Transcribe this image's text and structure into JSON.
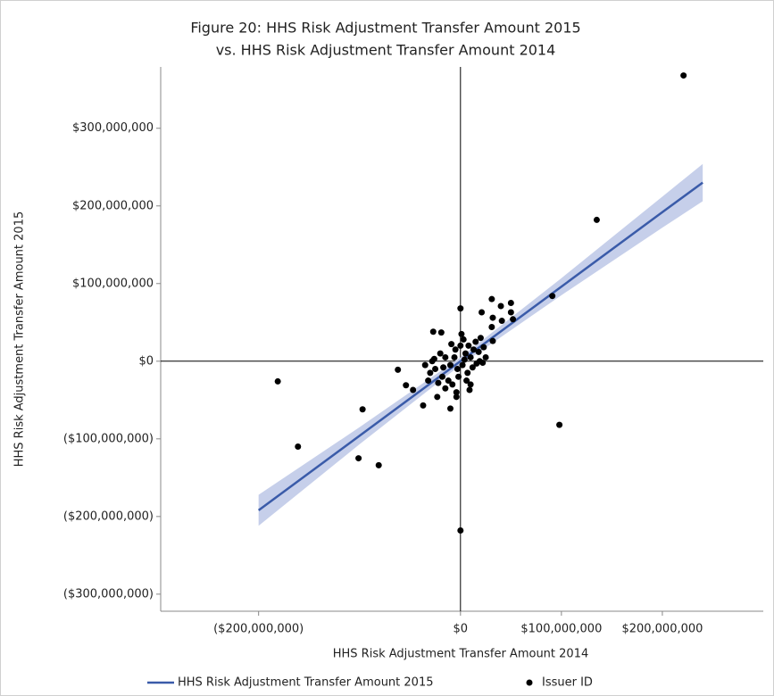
{
  "chart_data": {
    "type": "scatter",
    "title": [
      "Figure 20: HHS Risk Adjustment Transfer Amount 2015",
      "vs. HHS Risk Adjustment Transfer Amount 2014"
    ],
    "x_label": "HHS Risk Adjustment Transfer Amount 2014",
    "y_label": "HHS Risk Adjustment Transfer Amount 2015",
    "xlim": [
      -297000000,
      300000000
    ],
    "ylim": [
      -322000000,
      379000000
    ],
    "xticks": [
      {
        "value": -200000000,
        "label": "($200,000,000)"
      },
      {
        "value": 0,
        "label": "$0"
      },
      {
        "value": 100000000,
        "label": "$100,000,000"
      },
      {
        "value": 200000000,
        "label": "$200,000,000"
      }
    ],
    "yticks": [
      {
        "value": -300000000,
        "label": "($300,000,000)"
      },
      {
        "value": -200000000,
        "label": "($200,000,000)"
      },
      {
        "value": -100000000,
        "label": "($100,000,000)"
      },
      {
        "value": 0,
        "label": "$0"
      },
      {
        "value": 100000000,
        "label": "$100,000,000"
      },
      {
        "value": 200000000,
        "label": "$200,000,000"
      },
      {
        "value": 300000000,
        "label": "$300,000,000"
      }
    ],
    "fit": {
      "name": "HHS Risk Adjustment Transfer Amount 2015",
      "color": "#3a5ba9",
      "band_color": "#c6cfea",
      "x": [
        -200000000,
        -100000000,
        0,
        100000000,
        200000000,
        240000000
      ],
      "values": [
        -192000000,
        -96000000,
        0,
        96000000,
        192000000,
        230000000
      ],
      "lower": [
        -212000000,
        -107000000,
        -5000000,
        85000000,
        172000000,
        206000000
      ],
      "upper": [
        -172000000,
        -85000000,
        5000000,
        107000000,
        212000000,
        254000000
      ]
    },
    "series": [
      {
        "name": "Issuer ID",
        "color": "#000000",
        "x": [
          221000000,
          135000000,
          98000000,
          0,
          -181000000,
          -161000000,
          -97000000,
          -101000000,
          -81000000,
          0,
          91000000,
          31000000,
          50000000,
          40000000,
          50000000,
          21000000,
          52000000,
          41000000,
          32000000,
          31000000,
          32000000,
          -27000000,
          -19000000,
          -62000000,
          -54000000,
          -47000000,
          -37000000,
          -23000000,
          -10000000,
          -4000000,
          9000000,
          19000000,
          22000000,
          -20000000,
          -15000000,
          -10000000,
          -5000000,
          0,
          5000000,
          10000000,
          15000000,
          20000000,
          -25000000,
          -30000000,
          -28000000,
          -18000000,
          -12000000,
          -8000000,
          -3000000,
          2000000,
          7000000,
          12000000,
          18000000,
          -22000000,
          -15000000,
          3000000,
          8000000,
          13000000,
          -6000000,
          -2000000,
          4000000,
          -35000000,
          -32000000,
          23000000,
          -9000000,
          6000000,
          -17000000,
          1000000,
          -4000000,
          10000000,
          16000000,
          -26000000,
          25000000
        ],
        "values": [
          368000000,
          182000000,
          -82000000,
          -218000000,
          -26000000,
          -110000000,
          -62000000,
          -125000000,
          -134000000,
          68000000,
          84000000,
          80000000,
          75000000,
          71000000,
          63000000,
          63000000,
          54000000,
          52000000,
          56000000,
          44000000,
          26000000,
          38000000,
          37000000,
          -11000000,
          -31000000,
          -37000000,
          -57000000,
          -46000000,
          -61000000,
          -46000000,
          -37000000,
          0,
          -2000000,
          10000000,
          5000000,
          -5000000,
          15000000,
          20000000,
          10000000,
          5000000,
          25000000,
          30000000,
          -10000000,
          -15000000,
          0,
          -20000000,
          -25000000,
          -30000000,
          -10000000,
          -5000000,
          -15000000,
          -8000000,
          12000000,
          -28000000,
          -35000000,
          28000000,
          20000000,
          15000000,
          5000000,
          -20000000,
          2000000,
          -5000000,
          -25000000,
          18000000,
          22000000,
          -25000000,
          -8000000,
          35000000,
          -40000000,
          -30000000,
          -3000000,
          3000000,
          5000000
        ]
      }
    ]
  }
}
